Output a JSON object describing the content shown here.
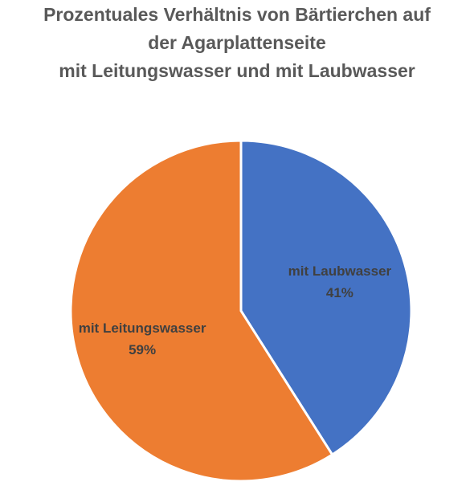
{
  "chart_data": {
    "type": "pie",
    "title": [
      "Prozentuales Verhältnis von Bärtierchen auf",
      "der Agarplattenseite",
      "mit Leitungswasser und mit Laubwasser"
    ],
    "categories": [
      "mit Laubwasser",
      "mit Leitungswasser"
    ],
    "values": [
      41,
      59
    ],
    "value_labels": [
      "41%",
      "59%"
    ],
    "colors": [
      "#4472c4",
      "#ed7d31"
    ]
  }
}
